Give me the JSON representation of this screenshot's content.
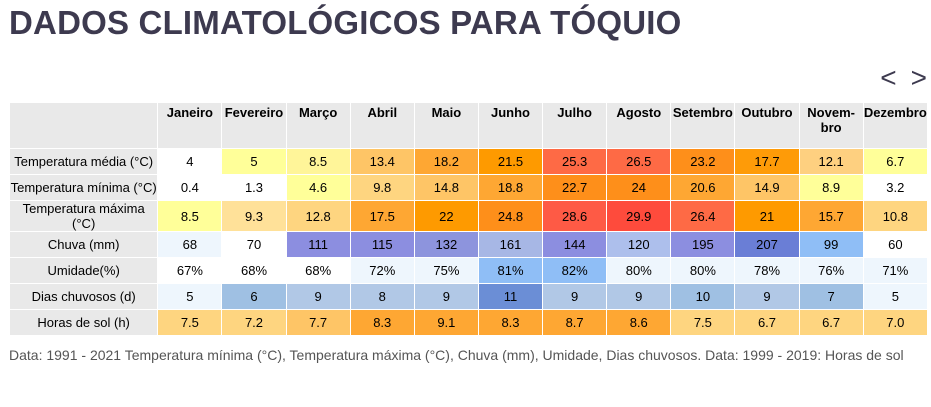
{
  "title": "DADOS CLIMATOLÓGICOS PARA TÓQUIO",
  "nav": {
    "prev": "<",
    "next": ">"
  },
  "table": {
    "months": [
      "Janeiro",
      "Fevereiro",
      "Março",
      "Abril",
      "Maio",
      "Junho",
      "Julho",
      "Agosto",
      "Setembro",
      "Outubro",
      "Novem-\nbro",
      "Dezembro"
    ],
    "rows": [
      {
        "label": "Temperatura média (°C)",
        "values": [
          "4",
          "5",
          "8.5",
          "13.4",
          "18.2",
          "21.5",
          "25.3",
          "26.5",
          "23.2",
          "17.7",
          "12.1",
          "6.7"
        ],
        "colors": [
          "#ffffff",
          "#ffff99",
          "#fff599",
          "#fec566",
          "#fea733",
          "#fe9a00",
          "#fe6a45",
          "#fe6a45",
          "#fe8f1a",
          "#fe9b08",
          "#fed080",
          "#ffff99"
        ]
      },
      {
        "label": "Temperatura mínima (°C)",
        "values": [
          "0.4",
          "1.3",
          "4.6",
          "9.8",
          "14.8",
          "18.8",
          "22.7",
          "24",
          "20.6",
          "14.9",
          "8.9",
          "3.2"
        ],
        "colors": [
          "#ffffff",
          "#ffffff",
          "#ffff99",
          "#fed580",
          "#fec566",
          "#fea733",
          "#fe8f1a",
          "#fe8f1a",
          "#fea733",
          "#fec566",
          "#ffff99",
          "#ffffff"
        ]
      },
      {
        "label": "Temperatura máxima (°C)",
        "values": [
          "8.5",
          "9.3",
          "12.8",
          "17.5",
          "22",
          "24.8",
          "28.6",
          "29.9",
          "26.4",
          "21",
          "15.7",
          "10.8"
        ],
        "colors": [
          "#ffff99",
          "#ffe199",
          "#fed580",
          "#fea733",
          "#fe9a00",
          "#fe8f1a",
          "#fe5a45",
          "#fe4b3c",
          "#fe6a45",
          "#fe9a00",
          "#fea733",
          "#fed580"
        ]
      },
      {
        "label": "Chuva (mm)",
        "values": [
          "68",
          "70",
          "111",
          "115",
          "132",
          "161",
          "144",
          "120",
          "195",
          "207",
          "99",
          "60"
        ],
        "colors": [
          "#eef6fd",
          "#ffffff",
          "#8c8ee0",
          "#8c8ee0",
          "#8d94dd",
          "#a7b7e5",
          "#8c8ee0",
          "#adbfec",
          "#8c8ee0",
          "#6a7ed6",
          "#8fbef6",
          "#ffffff"
        ]
      },
      {
        "label": "Umidade(%)",
        "values": [
          "67%",
          "68%",
          "68%",
          "72%",
          "75%",
          "81%",
          "82%",
          "80%",
          "80%",
          "78%",
          "76%",
          "71%"
        ],
        "colors": [
          "#ffffff",
          "#ffffff",
          "#ffffff",
          "#eef6fd",
          "#eef6fd",
          "#8fbef6",
          "#8fbef6",
          "#eef6fd",
          "#eef6fd",
          "#eef6fd",
          "#eef6fd",
          "#eef6fd"
        ]
      },
      {
        "label": "Dias chuvosos (d)",
        "values": [
          "5",
          "6",
          "9",
          "8",
          "9",
          "11",
          "9",
          "9",
          "10",
          "9",
          "7",
          "5"
        ],
        "colors": [
          "#eef6fd",
          "#9fc0e3",
          "#b1c8e6",
          "#b1c8e6",
          "#b1c8e6",
          "#6b8ed6",
          "#b1c8e6",
          "#b1c8e6",
          "#9fc0e3",
          "#b1c8e6",
          "#9fc0e3",
          "#eef6fd"
        ]
      },
      {
        "label": "Horas de sol (h)",
        "values": [
          "7.5",
          "7.2",
          "7.7",
          "8.3",
          "9.1",
          "8.3",
          "8.7",
          "8.6",
          "7.5",
          "6.7",
          "6.7",
          "7.0"
        ],
        "colors": [
          "#fed580",
          "#fed580",
          "#fec566",
          "#fea733",
          "#fea733",
          "#fea733",
          "#fea733",
          "#fea733",
          "#fed580",
          "#fed580",
          "#fed580",
          "#fed580"
        ]
      }
    ]
  },
  "footnote": "Data: 1991 - 2021 Temperatura mínima (°C), Temperatura máxima (°C), Chuva (mm), Umidade, Dias chuvosos. Data: 1999 - 2019: Horas de sol"
}
